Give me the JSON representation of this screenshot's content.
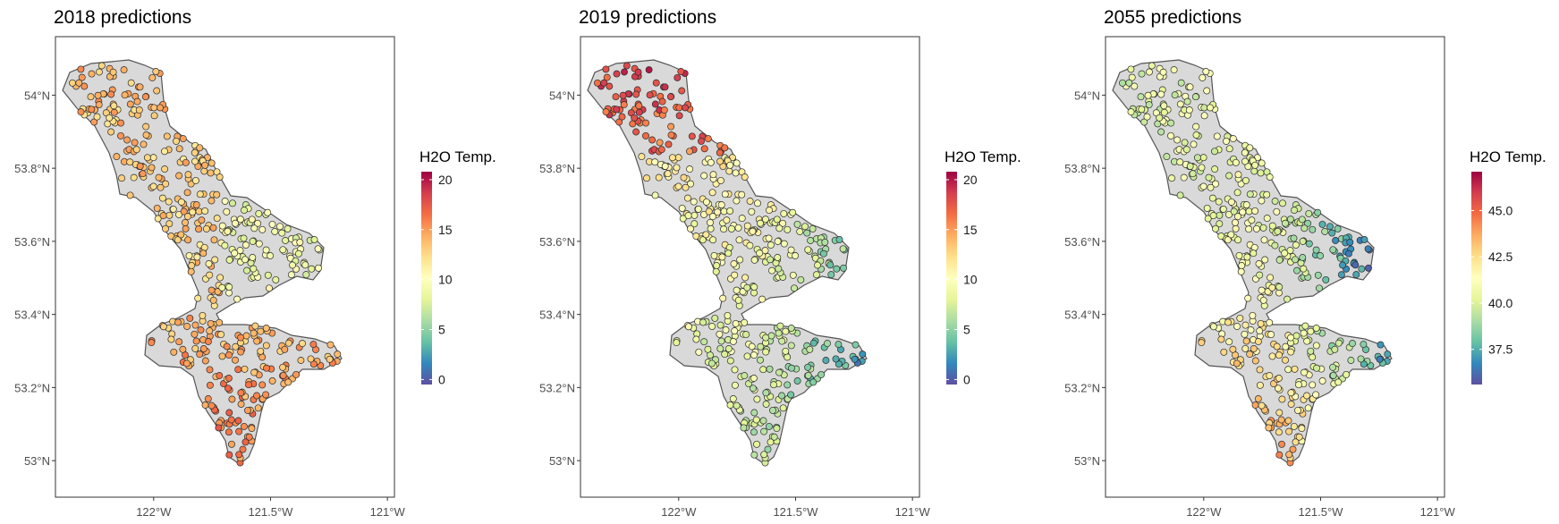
{
  "figure": {
    "panels": [
      {
        "title": "2018 predictions",
        "legend": {
          "title": "H2O Temp.",
          "ticks": [
            0,
            5,
            10,
            15,
            20
          ],
          "tick_labels": [
            "0",
            "5",
            "10",
            "15",
            "20"
          ],
          "range": [
            -0.5,
            20.8
          ]
        },
        "x_ticks": [
          {
            "value": -122.0,
            "label": "122°W"
          },
          {
            "value": -121.5,
            "label": "121.5°W"
          },
          {
            "value": -121.0,
            "label": "121°W"
          }
        ],
        "y_ticks": [
          {
            "value": 54.0,
            "label": "54°N"
          },
          {
            "value": 53.8,
            "label": "53.8°N"
          },
          {
            "value": 53.6,
            "label": "53.6°N"
          },
          {
            "value": 53.4,
            "label": "53.4°N"
          },
          {
            "value": 53.2,
            "label": "53.2°N"
          },
          {
            "value": 53.0,
            "label": "53°N"
          }
        ],
        "scenario": "2018"
      },
      {
        "title": "2019 predictions",
        "legend": {
          "title": "H2O Temp.",
          "ticks": [
            0,
            5,
            10,
            15,
            20
          ],
          "tick_labels": [
            "0",
            "5",
            "10",
            "15",
            "20"
          ],
          "range": [
            -0.5,
            20.8
          ]
        },
        "x_ticks": [
          {
            "value": -122.0,
            "label": "122°W"
          },
          {
            "value": -121.5,
            "label": "121.5°W"
          },
          {
            "value": -121.0,
            "label": "121°W"
          }
        ],
        "y_ticks": [
          {
            "value": 54.0,
            "label": "54°N"
          },
          {
            "value": 53.8,
            "label": "53.8°N"
          },
          {
            "value": 53.6,
            "label": "53.6°N"
          },
          {
            "value": 53.4,
            "label": "53.4°N"
          },
          {
            "value": 53.2,
            "label": "53.2°N"
          },
          {
            "value": 53.0,
            "label": "53°N"
          }
        ],
        "scenario": "2019"
      },
      {
        "title": "2055 predictions",
        "legend": {
          "title": "H2O Temp.",
          "ticks": [
            37.5,
            40.0,
            42.5,
            45.0
          ],
          "tick_labels": [
            "37.5",
            "40.0",
            "42.5",
            "45.0"
          ],
          "range": [
            35.6,
            47.1
          ]
        },
        "x_ticks": [
          {
            "value": -122.0,
            "label": "122°W"
          },
          {
            "value": -121.5,
            "label": "121.5°W"
          },
          {
            "value": -121.0,
            "label": "121°W"
          }
        ],
        "y_ticks": [
          {
            "value": 54.0,
            "label": "54°N"
          },
          {
            "value": 53.8,
            "label": "53.8°N"
          },
          {
            "value": 53.6,
            "label": "53.6°N"
          },
          {
            "value": 53.4,
            "label": "53.4°N"
          },
          {
            "value": 53.2,
            "label": "53.2°N"
          },
          {
            "value": 53.0,
            "label": "53°N"
          }
        ],
        "scenario": "2055"
      }
    ],
    "map_extent": {
      "lon": [
        -122.42,
        -120.97
      ],
      "lat": [
        52.9,
        54.16
      ]
    },
    "colormap": [
      "#5e4fa2",
      "#3288bd",
      "#66c2a5",
      "#abdda4",
      "#e6f598",
      "#ffffbf",
      "#fee08b",
      "#fdae61",
      "#f46d43",
      "#d53e4f",
      "#9e0142"
    ],
    "colors": {
      "point_outline": "#2b2b2b",
      "watershed_outline": "#555555",
      "watershed_fill": "#d9d9d9"
    }
  }
}
